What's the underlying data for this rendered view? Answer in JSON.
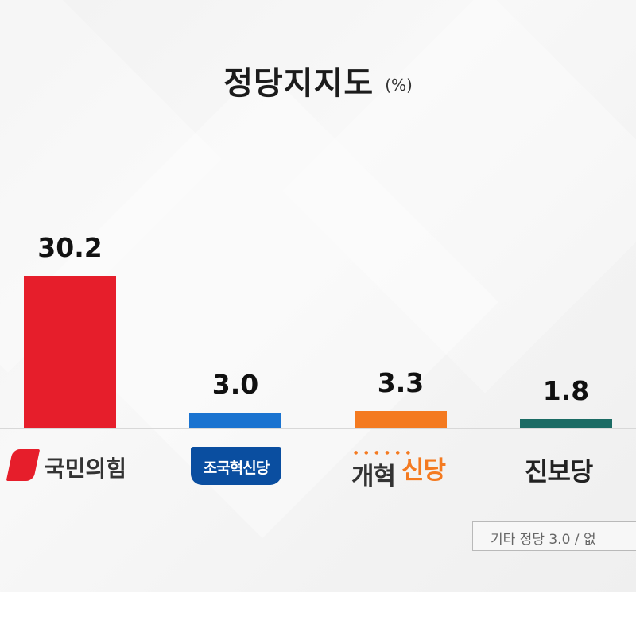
{
  "chart_data": {
    "type": "bar",
    "title": "정당지지도",
    "unit": "(%)",
    "categories": [
      "국민의힘",
      "조국혁신당",
      "개혁신당",
      "진보당"
    ],
    "values": [
      30.2,
      3.0,
      3.3,
      1.8
    ],
    "value_labels": [
      "30.2",
      "3.0",
      "3.3",
      "1.8"
    ],
    "colors": [
      "#e61e2b",
      "#1a73d0",
      "#f47a20",
      "#1b6b64"
    ],
    "accent_colors": [
      "#e61e2b",
      "#0a4ea0",
      "#f47a20",
      "#222222"
    ],
    "ylim": [
      0,
      30.2
    ],
    "note": "기타 정당 3.0 / 없"
  },
  "labels": {
    "party_0": "국민의힘",
    "party_1": "조국혁신당",
    "party_2a": "개혁",
    "party_2b": "신당",
    "party_3": "진보당"
  }
}
